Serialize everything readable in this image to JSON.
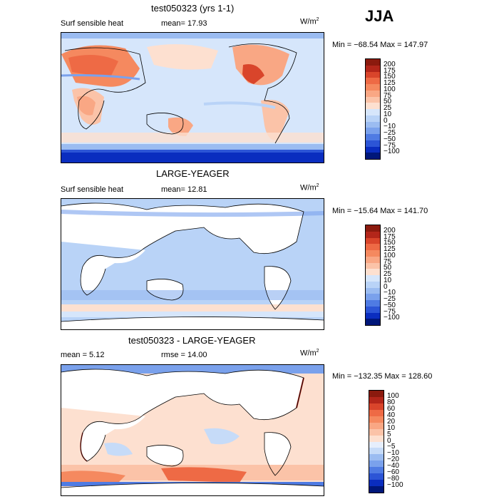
{
  "season": "JJA",
  "panels": [
    {
      "title": "test050323 (yrs 1-1)",
      "variable": "Surf sensible heat",
      "stat_left": "mean=  17.93",
      "units": "W/m",
      "units_sup": "2",
      "minmax": "Min = −68.54 Max = 147.97",
      "levels": [
        "200",
        "175",
        "150",
        "125",
        "100",
        "75",
        "50",
        "25",
        "10",
        "0",
        "−10",
        "−25",
        "−50",
        "−75",
        "−100"
      ],
      "colors": [
        "#8b1a0e",
        "#b3261a",
        "#d9452b",
        "#ee6a45",
        "#f5895f",
        "#f9a784",
        "#fbc3a8",
        "#fde0d0",
        "#d6e6fb",
        "#b9d3f7",
        "#9bbcf1",
        "#7aa1ec",
        "#4f7be3",
        "#2c55d6",
        "#0a2dbf",
        "#00177a"
      ]
    },
    {
      "title": "LARGE-YEAGER",
      "variable": "Surf sensible heat",
      "stat_left": "mean=  12.81",
      "units": "W/m",
      "units_sup": "2",
      "minmax": "Min = −15.64 Max = 141.70",
      "levels": [
        "200",
        "175",
        "150",
        "125",
        "100",
        "75",
        "50",
        "25",
        "10",
        "0",
        "−10",
        "−25",
        "−50",
        "−75",
        "−100"
      ],
      "colors": [
        "#8b1a0e",
        "#b3261a",
        "#d9452b",
        "#ee6a45",
        "#f5895f",
        "#f9a784",
        "#fbc3a8",
        "#fde0d0",
        "#d6e6fb",
        "#b9d3f7",
        "#9bbcf1",
        "#7aa1ec",
        "#4f7be3",
        "#2c55d6",
        "#0a2dbf",
        "#00177a"
      ]
    },
    {
      "title": "test050323 - LARGE-YEAGER",
      "variable": "mean =   5.12",
      "stat_left": "rmse =  14.00",
      "units": "W/m",
      "units_sup": "2",
      "minmax": "Min = −132.35 Max = 128.60",
      "levels": [
        "100",
        "80",
        "60",
        "40",
        "20",
        "10",
        "5",
        "0",
        "−5",
        "−10",
        "−20",
        "−40",
        "−60",
        "−80",
        "−100"
      ],
      "colors": [
        "#8b1a0e",
        "#b3261a",
        "#d9452b",
        "#ee6a45",
        "#f5895f",
        "#f9a784",
        "#fbc3a8",
        "#fde0d0",
        "#e6eefc",
        "#c6dbf8",
        "#9bbcf1",
        "#7aa1ec",
        "#4f7be3",
        "#2c55d6",
        "#0a2dbf",
        "#00177a"
      ]
    }
  ],
  "chart_data": {
    "type": "heatmap",
    "title": "JJA",
    "panels": [
      {
        "title": "test050323 (yrs 1-1)",
        "variable": "Surf sensible heat",
        "mean": 17.93,
        "min": -68.54,
        "max": 147.97,
        "units": "W/m2",
        "contour_levels": [
          -100,
          -75,
          -50,
          -25,
          -10,
          0,
          10,
          25,
          50,
          75,
          100,
          125,
          150,
          175,
          200
        ]
      },
      {
        "title": "LARGE-YEAGER",
        "variable": "Surf sensible heat",
        "mean": 12.81,
        "min": -15.64,
        "max": 141.7,
        "units": "W/m2",
        "contour_levels": [
          -100,
          -75,
          -50,
          -25,
          -10,
          0,
          10,
          25,
          50,
          75,
          100,
          125,
          150,
          175,
          200
        ]
      },
      {
        "title": "test050323 - LARGE-YEAGER",
        "mean": 5.12,
        "rmse": 14.0,
        "min": -132.35,
        "max": 128.6,
        "units": "W/m2",
        "contour_levels": [
          -100,
          -80,
          -60,
          -40,
          -20,
          -10,
          -5,
          0,
          5,
          10,
          20,
          40,
          60,
          80,
          100
        ]
      }
    ]
  }
}
